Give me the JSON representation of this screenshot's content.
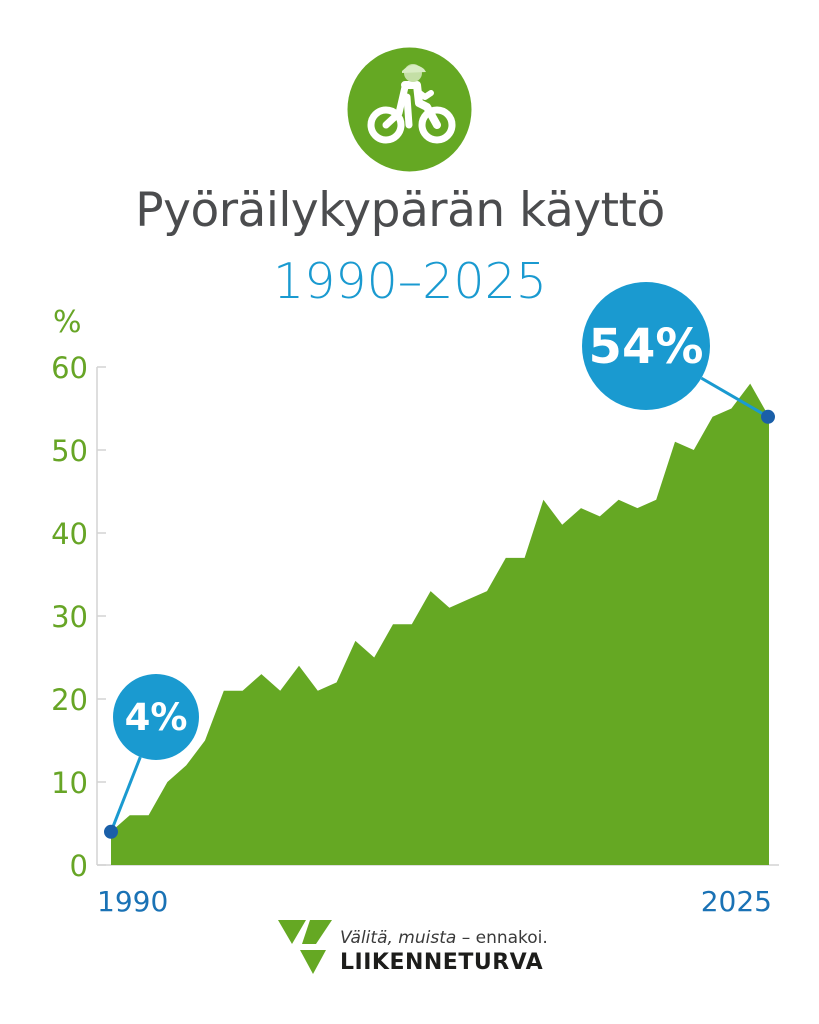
{
  "header": {
    "title": "Pyöräilykypärän käyttö",
    "subtitle": "1990–2025"
  },
  "footer": {
    "slogan_italic": "Välitä, muista",
    "slogan_rest": " – ennakoi.",
    "brand": "LIIKENNETURVA"
  },
  "colors": {
    "area": "#65a823",
    "accent": "#1a9ad0",
    "marker": "#1a5fa8",
    "tick": "#67a526"
  },
  "icons": [
    "cyclist-helmet-icon",
    "liikenneturva-logo-icon"
  ],
  "chart_data": {
    "type": "area",
    "title": "Pyöräilykypärän käyttö",
    "subtitle": "1990–2025",
    "ylabel": "%",
    "ylim": [
      0,
      60
    ],
    "yticks": [
      0,
      10,
      20,
      30,
      40,
      50,
      60
    ],
    "xtick_labels": [
      "1990",
      "2025"
    ],
    "grid": false,
    "x": [
      1990,
      1991,
      1992,
      1993,
      1994,
      1995,
      1996,
      1997,
      1998,
      1999,
      2000,
      2001,
      2002,
      2003,
      2004,
      2005,
      2006,
      2007,
      2008,
      2009,
      2010,
      2011,
      2012,
      2013,
      2014,
      2015,
      2016,
      2017,
      2018,
      2019,
      2020,
      2021,
      2022,
      2023,
      2024,
      2025
    ],
    "values": [
      4,
      6,
      6,
      10,
      12,
      15,
      21,
      21,
      23,
      21,
      24,
      21,
      22,
      27,
      25,
      29,
      29,
      33,
      31,
      32,
      33,
      37,
      37,
      44,
      41,
      43,
      42,
      44,
      43,
      44,
      51,
      50,
      54,
      55,
      58,
      54
    ],
    "annotations": [
      {
        "label": "4%",
        "x": 1990,
        "y": 4
      },
      {
        "label": "54%",
        "x": 2025,
        "y": 54
      }
    ]
  }
}
